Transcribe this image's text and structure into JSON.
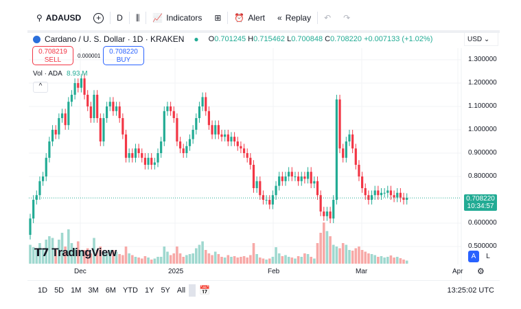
{
  "toolbar": {
    "symbol": "ADAUSD",
    "interval": "D",
    "indicators": "Indicators",
    "alert": "Alert",
    "replay": "Replay"
  },
  "header": {
    "title": "Cardano / U. S. Dollar · 1D · KRAKEN",
    "o_label": "O",
    "o": "0.701245",
    "h_label": "H",
    "h": "0.715462",
    "l_label": "L",
    "l": "0.700848",
    "c_label": "C",
    "c": "0.708220",
    "change": "+0.007133 (+1.02%)",
    "currency": "USD"
  },
  "trade": {
    "sell_price": "0.708219",
    "sell_label": "SELL",
    "spread": "0.000001",
    "buy_price": "0.708220",
    "buy_label": "BUY"
  },
  "volume": {
    "label": "Vol · ADA",
    "value": "8.93 M"
  },
  "price_axis": [
    "1.300000",
    "1.200000",
    "1.100000",
    "1.000000",
    "0.900000",
    "0.800000",
    "0.600000",
    "0.500000"
  ],
  "last_price": {
    "price": "0.708220",
    "countdown": "10:34:57"
  },
  "time_axis": [
    "Dec",
    "2025",
    "Feb",
    "Mar",
    "Apr"
  ],
  "logo": "TradingView",
  "scale_buttons": {
    "auto": "A",
    "log": "L"
  },
  "ranges": [
    "1D",
    "5D",
    "1M",
    "3M",
    "6M",
    "YTD",
    "1Y",
    "5Y",
    "All"
  ],
  "clock": "13:25:02 UTC",
  "colors": {
    "up": "#22ab94",
    "down": "#f23645",
    "vol_up": "#9fd8cf",
    "vol_down": "#f7a9a7"
  },
  "chart_data": {
    "type": "candlestick",
    "start_open": 0.55,
    "closes": [
      0.62,
      0.7,
      0.72,
      0.78,
      0.8,
      0.88,
      0.95,
      1.0,
      0.98,
      1.05,
      1.07,
      1.02,
      1.12,
      1.15,
      1.2,
      1.18,
      1.22,
      1.15,
      1.1,
      1.05,
      1.15,
      1.05,
      0.95,
      1.05,
      1.1,
      1.12,
      1.08,
      1.1,
      1.05,
      0.98,
      0.88,
      0.9,
      0.88,
      0.92,
      0.9,
      0.88,
      0.85,
      0.88,
      0.85,
      0.86,
      0.9,
      0.95,
      1.08,
      1.1,
      1.08,
      1.05,
      0.95,
      0.92,
      0.9,
      0.93,
      0.96,
      1.0,
      1.05,
      1.1,
      1.14,
      1.08,
      1.02,
      0.98,
      1.02,
      0.98,
      0.97,
      0.98,
      0.95,
      0.97,
      0.95,
      0.93,
      0.92,
      0.9,
      0.88,
      0.85,
      0.75,
      0.78,
      0.72,
      0.7,
      0.7,
      0.68,
      0.72,
      0.76,
      0.8,
      0.78,
      0.8,
      0.82,
      0.8,
      0.8,
      0.78,
      0.8,
      0.79,
      0.82,
      0.77,
      0.78,
      0.72,
      0.65,
      0.63,
      0.65,
      0.62,
      0.7,
      1.13,
      0.92,
      0.88,
      0.95,
      0.98,
      0.92,
      0.85,
      0.8,
      0.75,
      0.72,
      0.7,
      0.72,
      0.74,
      0.72,
      0.73,
      0.73,
      0.74,
      0.72,
      0.71,
      0.73,
      0.71,
      0.7,
      0.708
    ],
    "volumes": [
      55,
      48,
      40,
      60,
      45,
      70,
      80,
      75,
      40,
      70,
      90,
      50,
      100,
      60,
      45,
      65,
      40,
      40,
      45,
      30,
      75,
      40,
      50,
      35,
      30,
      40,
      40,
      35,
      28,
      25,
      50,
      30,
      25,
      20,
      18,
      15,
      22,
      18,
      12,
      15,
      20,
      20,
      50,
      35,
      25,
      30,
      50,
      30,
      20,
      25,
      28,
      30,
      45,
      55,
      65,
      40,
      30,
      25,
      35,
      28,
      20,
      18,
      25,
      20,
      22,
      18,
      20,
      22,
      18,
      25,
      60,
      28,
      18,
      15,
      12,
      15,
      20,
      48,
      30,
      22,
      25,
      20,
      18,
      15,
      22,
      20,
      30,
      28,
      20,
      15,
      60,
      90,
      120,
      95,
      80,
      55,
      50,
      45,
      60,
      55,
      40,
      38,
      45,
      50,
      40,
      35,
      30,
      28,
      25,
      20,
      22,
      18,
      20,
      24,
      18,
      20,
      16,
      12,
      9
    ]
  }
}
